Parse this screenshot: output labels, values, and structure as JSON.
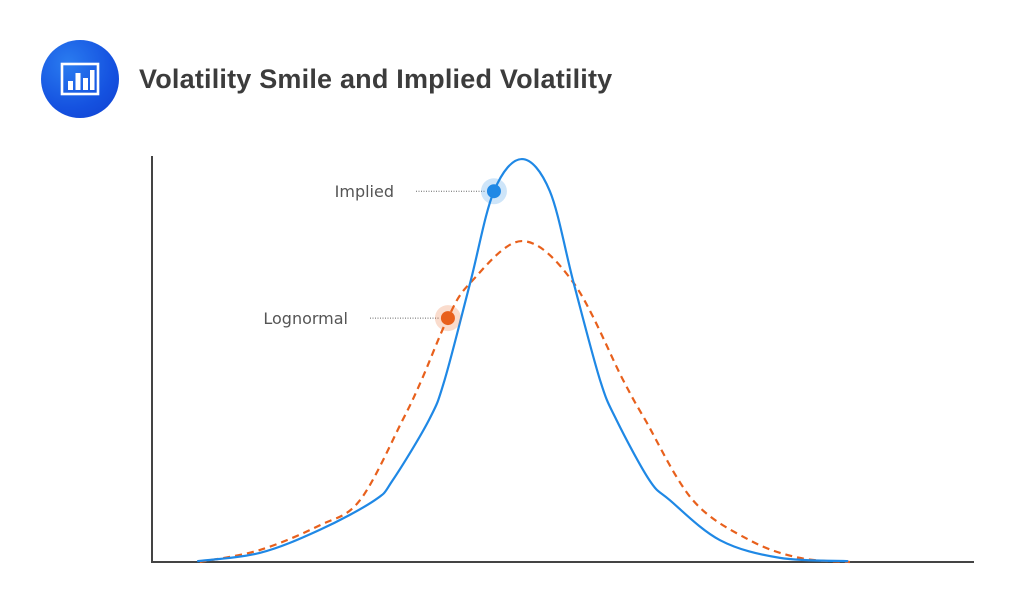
{
  "header": {
    "title": "Volatility Smile and Implied Volatility",
    "icon": "bar-chart-icon",
    "icon_color": "#1552e0"
  },
  "chart_data": {
    "type": "line",
    "title": "Volatility Smile and Implied Volatility",
    "xlabel": "",
    "ylabel": "",
    "xlim": [
      0,
      100
    ],
    "ylim": [
      0,
      100
    ],
    "grid": false,
    "axes": {
      "x_visible": true,
      "y_visible": true,
      "ticks": false
    },
    "series": [
      {
        "name": "Implied",
        "color": "#1f88e5",
        "style": "solid",
        "x": [
          5.5,
          13.1,
          20.4,
          27.1,
          29.3,
          33.7,
          35.6,
          38.7,
          41.6,
          45.0,
          48.4,
          51.3,
          54.5,
          56.5,
          60.5,
          63.0,
          69.1,
          76.4,
          84.7
        ],
        "y": [
          0.2,
          2.2,
          7.8,
          15.0,
          19.9,
          34.5,
          44.2,
          67.7,
          90.0,
          97.8,
          90.0,
          67.7,
          44.2,
          34.5,
          19.9,
          15.0,
          5.3,
          1.0,
          0.2
        ]
      },
      {
        "name": "Lognormal",
        "color": "#e8601c",
        "style": "dashed",
        "x": [
          5.8,
          13.1,
          20.4,
          25.3,
          30.5,
          32.8,
          36.0,
          38.7,
          45.0,
          51.3,
          57.3,
          60.0,
          65.8,
          72.7,
          78.8,
          84.9
        ],
        "y": [
          0.0,
          2.9,
          8.9,
          15.0,
          34.5,
          44.2,
          59.2,
          67.7,
          77.9,
          67.7,
          44.2,
          34.5,
          15.0,
          5.3,
          1.0,
          0.0
        ]
      }
    ],
    "annotations": [
      {
        "label": "Implied",
        "series": "Implied",
        "x": 41.6,
        "y": 90.0,
        "color": "#1f88e5"
      },
      {
        "label": "Lognormal",
        "series": "Lognormal",
        "x": 36.0,
        "y": 59.2,
        "color": "#e8601c"
      }
    ],
    "legend": "none (inline labels)"
  }
}
